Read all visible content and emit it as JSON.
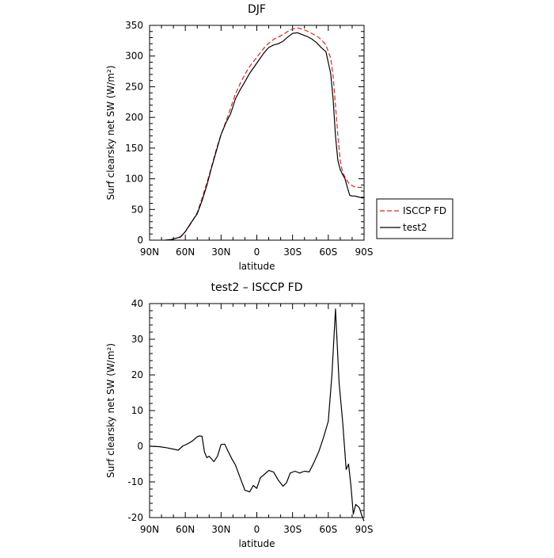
{
  "chart_data": [
    {
      "type": "line",
      "title": "DJF",
      "xlabel": "latitude",
      "ylabel": "Surf clearsky net SW (W/m²)",
      "xlim": [
        -90,
        90
      ],
      "ylim": [
        0,
        350
      ],
      "xticks": [
        {
          "value": -90,
          "label": "90N"
        },
        {
          "value": -60,
          "label": "60N"
        },
        {
          "value": -30,
          "label": "30N"
        },
        {
          "value": 0,
          "label": "0"
        },
        {
          "value": 30,
          "label": "30S"
        },
        {
          "value": 60,
          "label": "60S"
        },
        {
          "value": 90,
          "label": "90S"
        }
      ],
      "yticks": [
        0,
        50,
        100,
        150,
        200,
        250,
        300,
        350
      ],
      "legend_position": "right",
      "series": [
        {
          "name": "ISCCP FD",
          "color": "#d62728",
          "dash": "dashed",
          "x": [
            -77,
            -72,
            -68,
            -64,
            -60,
            -55,
            -50,
            -46,
            -42,
            -38,
            -34,
            -30,
            -26,
            -22,
            -18,
            -14,
            -10,
            -6,
            -2,
            2,
            6,
            10,
            14,
            18,
            22,
            26,
            30,
            34,
            38,
            42,
            46,
            50,
            54,
            58,
            62,
            64,
            66,
            68,
            70,
            72,
            74,
            76,
            78,
            80,
            82,
            84,
            86,
            88,
            90
          ],
          "y": [
            0,
            1,
            3,
            6,
            14,
            28,
            45,
            68,
            93,
            120,
            148,
            172,
            193,
            215,
            238,
            255,
            270,
            283,
            293,
            303,
            313,
            321,
            327,
            331,
            335,
            340,
            344,
            346,
            344,
            341,
            337,
            333,
            327,
            318,
            297,
            268,
            220,
            170,
            130,
            110,
            103,
            96,
            91,
            89,
            87,
            86,
            86,
            86,
            86
          ]
        },
        {
          "name": "test2",
          "color": "#000000",
          "dash": "solid",
          "x": [
            -77,
            -72,
            -68,
            -64,
            -60,
            -55,
            -50,
            -46,
            -42,
            -38,
            -34,
            -30,
            -26,
            -22,
            -18,
            -14,
            -10,
            -6,
            -2,
            2,
            6,
            10,
            14,
            18,
            22,
            26,
            30,
            34,
            38,
            42,
            46,
            50,
            54,
            58,
            62,
            64,
            66,
            68,
            70,
            72,
            74,
            76,
            78,
            80,
            82,
            84,
            86,
            88,
            90
          ],
          "y": [
            0,
            1,
            3,
            5,
            14,
            29,
            43,
            64,
            89,
            118,
            145,
            172,
            191,
            206,
            230,
            245,
            258,
            272,
            283,
            294,
            305,
            314,
            318,
            320,
            324,
            331,
            337,
            338,
            335,
            332,
            328,
            322,
            314,
            307,
            272,
            230,
            170,
            130,
            115,
            107,
            100,
            86,
            73,
            72,
            72,
            71,
            70,
            69,
            69
          ]
        }
      ]
    },
    {
      "type": "line",
      "title": "test2 – ISCCP FD",
      "xlabel": "latitude",
      "ylabel": "Surf clearsky net SW (W/m²)",
      "xlim": [
        -90,
        90
      ],
      "ylim": [
        -20,
        40
      ],
      "xticks": [
        {
          "value": -90,
          "label": "90N"
        },
        {
          "value": -60,
          "label": "60N"
        },
        {
          "value": -30,
          "label": "30N"
        },
        {
          "value": 0,
          "label": "0"
        },
        {
          "value": 30,
          "label": "30S"
        },
        {
          "value": 60,
          "label": "60S"
        },
        {
          "value": 90,
          "label": "90S"
        }
      ],
      "yticks": [
        -20,
        -10,
        0,
        10,
        20,
        30,
        40
      ],
      "series": [
        {
          "name": "",
          "color": "#000000",
          "dash": "solid",
          "x": [
            -90,
            -82,
            -76,
            -70,
            -66,
            -62,
            -58,
            -54,
            -50,
            -48,
            -46,
            -44,
            -42,
            -40,
            -36,
            -33,
            -30,
            -27,
            -24,
            -21,
            -18,
            -14,
            -10,
            -6,
            -3,
            0,
            3,
            6,
            10,
            14,
            18,
            22,
            25,
            28,
            32,
            36,
            40,
            44,
            48,
            52,
            56,
            60,
            63,
            66,
            69,
            72,
            75,
            77,
            79,
            81,
            83,
            86,
            88,
            90
          ],
          "y": [
            0,
            -0.1,
            -0.4,
            -0.8,
            -1.1,
            0.1,
            0.7,
            1.5,
            2.7,
            2.9,
            2.8,
            -1.5,
            -3.2,
            -2.8,
            -4.3,
            -2.8,
            0.5,
            0.6,
            -1.5,
            -3.5,
            -5.2,
            -8.8,
            -12.3,
            -12.8,
            -11,
            -11.8,
            -8.8,
            -8,
            -6.8,
            -7.2,
            -9.5,
            -11.2,
            -10.2,
            -7.5,
            -7,
            -7.5,
            -7,
            -7.2,
            -4.5,
            -1.5,
            2.5,
            7,
            20,
            38.5,
            18,
            7,
            -6.5,
            -5,
            -11,
            -19,
            -16.3,
            -17.2,
            -19.3,
            -21
          ]
        }
      ]
    }
  ]
}
